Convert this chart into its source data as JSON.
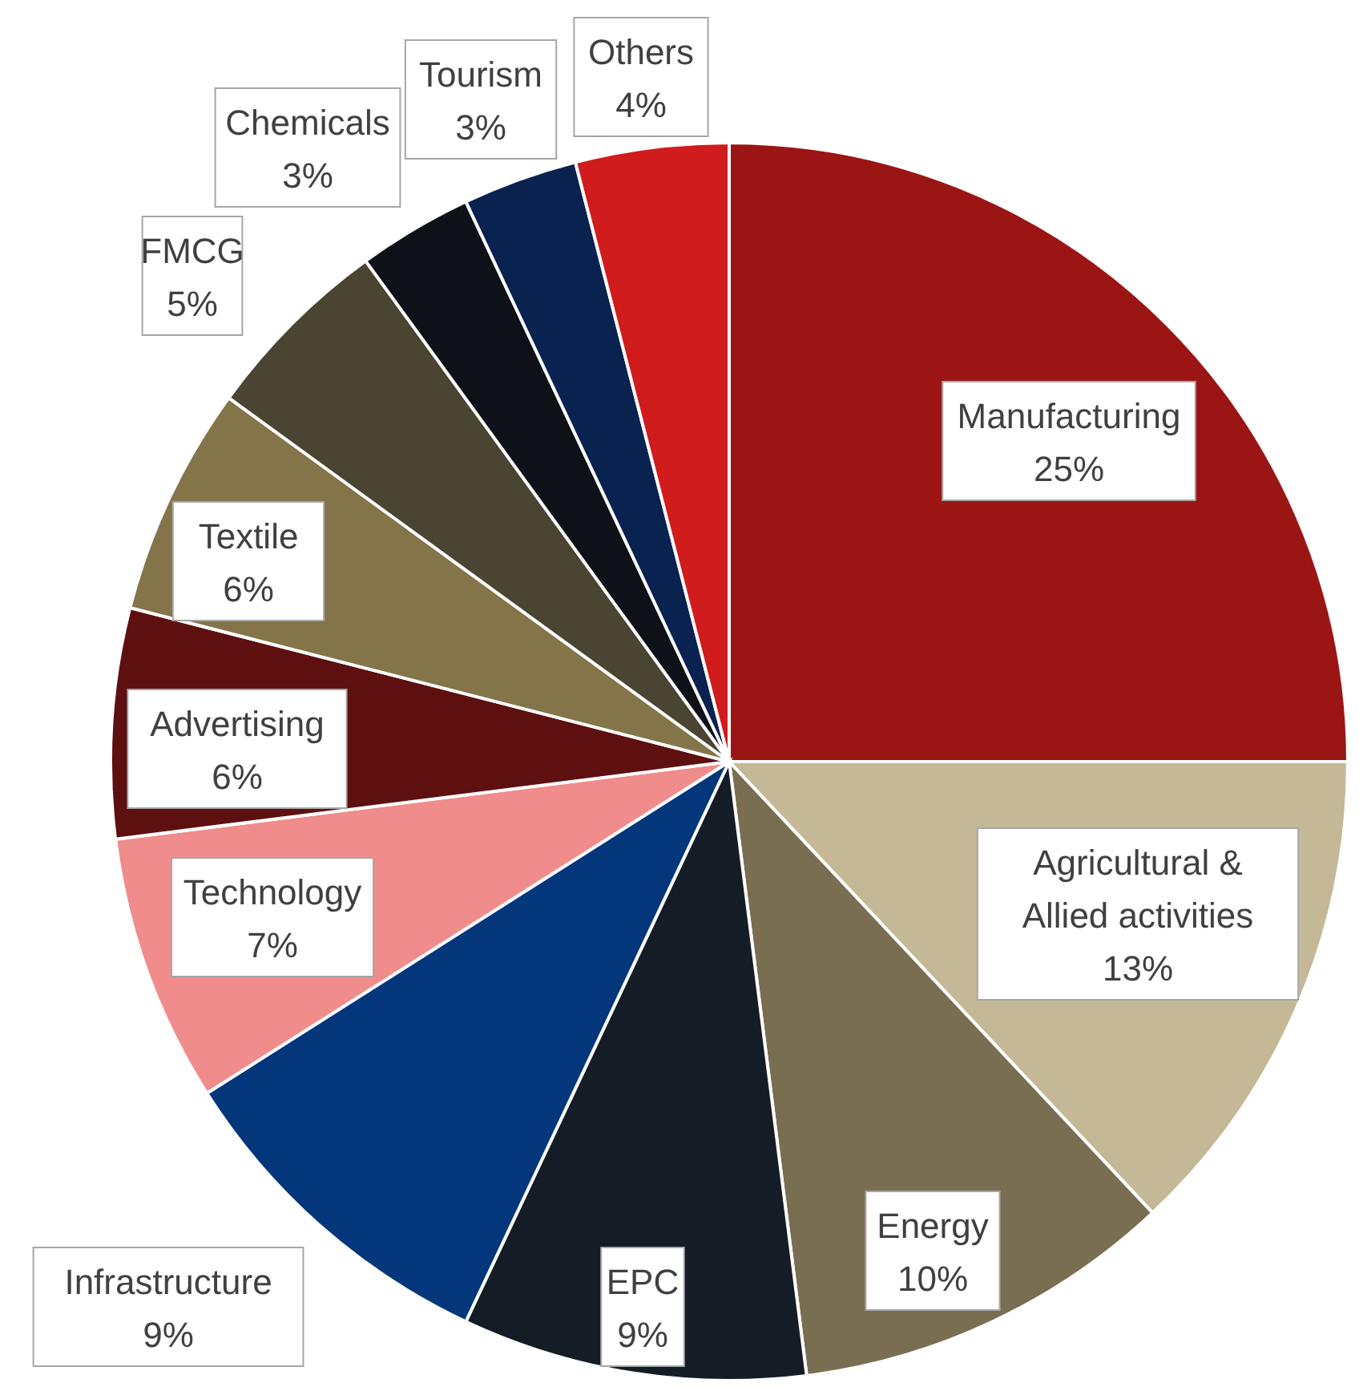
{
  "chart_data": {
    "type": "pie",
    "categories": [
      "Manufacturing",
      "Agricultural & Allied activities",
      "Energy",
      "EPC",
      "Infrastructure",
      "Technology",
      "Advertising",
      "Textile",
      "FMCG",
      "Chemicals",
      "Tourism",
      "Others"
    ],
    "values": [
      25,
      13,
      10,
      9,
      9,
      7,
      6,
      6,
      5,
      3,
      3,
      4
    ],
    "colors": [
      "#9b1515",
      "#c4b896",
      "#7a6e52",
      "#141c26",
      "#03367a",
      "#f08c8c",
      "#5e0f0f",
      "#84744a",
      "#4a4432",
      "#0e1118",
      "#0a2250",
      "#d01c1c"
    ],
    "value_labels": [
      "25%",
      "13%",
      "10%",
      "9%",
      "9%",
      "7%",
      "6%",
      "6%",
      "5%",
      "3%",
      "3%",
      "4%"
    ]
  }
}
